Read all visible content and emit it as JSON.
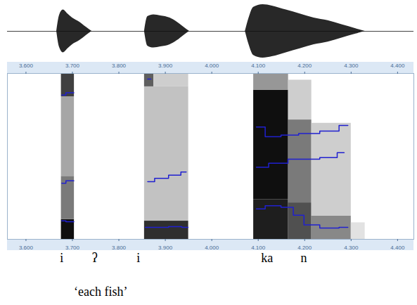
{
  "chart_data": {
    "type": "spectrogram",
    "xlim": [
      3.56,
      4.435
    ],
    "xticks": [
      {
        "value": 3.6,
        "label": "3.600"
      },
      {
        "value": 3.7,
        "label": "3.700"
      },
      {
        "value": 3.8,
        "label": "3.800"
      },
      {
        "value": 3.9,
        "label": "3.900"
      },
      {
        "value": 4.0,
        "label": "4.000"
      },
      {
        "value": 4.1,
        "label": "4.100"
      },
      {
        "value": 4.2,
        "label": "4.200"
      },
      {
        "value": 4.3,
        "label": "4.300"
      },
      {
        "value": 4.4,
        "label": "4.400"
      }
    ],
    "ylim": [
      0,
      5000
    ],
    "tick_labels": "x",
    "waveform": {
      "ylim": [
        -1,
        1
      ],
      "color": "#111111",
      "envelope": [
        [
          [
            3.666,
            0
          ],
          [
            3.672,
            0.6
          ],
          [
            3.68,
            0.8
          ],
          [
            3.69,
            0.65
          ],
          [
            3.7,
            0.5
          ],
          [
            3.715,
            0.35
          ],
          [
            3.73,
            0.15
          ],
          [
            3.742,
            0
          ]
        ],
        [
          [
            3.855,
            0
          ],
          [
            3.862,
            0.55
          ],
          [
            3.875,
            0.62
          ],
          [
            3.89,
            0.58
          ],
          [
            3.91,
            0.5
          ],
          [
            3.925,
            0.35
          ],
          [
            3.94,
            0.15
          ],
          [
            3.952,
            0
          ]
        ],
        [
          [
            4.072,
            0
          ],
          [
            4.08,
            0.5
          ],
          [
            4.09,
            0.9
          ],
          [
            4.11,
            1.0
          ],
          [
            4.13,
            0.95
          ],
          [
            4.16,
            0.8
          ],
          [
            4.19,
            0.65
          ],
          [
            4.22,
            0.5
          ],
          [
            4.25,
            0.4
          ],
          [
            4.28,
            0.25
          ],
          [
            4.31,
            0.1
          ],
          [
            4.33,
            0
          ]
        ]
      ]
    },
    "cells": [
      {
        "t0": 3.676,
        "t1": 3.704,
        "f0": 0,
        "f1": 600,
        "level": 0.95
      },
      {
        "t0": 3.676,
        "t1": 3.704,
        "f0": 600,
        "f1": 1900,
        "level": 0.6
      },
      {
        "t0": 3.676,
        "t1": 3.704,
        "f0": 1900,
        "f1": 4300,
        "level": 0.45
      },
      {
        "t0": 3.676,
        "t1": 3.704,
        "f0": 4300,
        "f1": 5000,
        "level": 0.8
      },
      {
        "t0": 3.855,
        "t1": 3.95,
        "f0": 0,
        "f1": 550,
        "level": 0.85
      },
      {
        "t0": 3.855,
        "t1": 3.95,
        "f0": 550,
        "f1": 4600,
        "level": 0.35
      },
      {
        "t0": 3.855,
        "t1": 3.875,
        "f0": 4600,
        "f1": 5000,
        "level": 0.7
      },
      {
        "t0": 3.875,
        "t1": 3.95,
        "f0": 4600,
        "f1": 5000,
        "level": 0.3
      },
      {
        "t0": 4.09,
        "t1": 4.165,
        "f0": 0,
        "f1": 1200,
        "level": 0.9
      },
      {
        "t0": 4.09,
        "t1": 4.165,
        "f0": 1200,
        "f1": 4500,
        "level": 0.95
      },
      {
        "t0": 4.09,
        "t1": 4.165,
        "f0": 4500,
        "f1": 5000,
        "level": 0.5
      },
      {
        "t0": 4.165,
        "t1": 4.215,
        "f0": 0,
        "f1": 1100,
        "level": 0.75
      },
      {
        "t0": 4.165,
        "t1": 4.215,
        "f0": 1100,
        "f1": 3600,
        "level": 0.6
      },
      {
        "t0": 4.165,
        "t1": 4.215,
        "f0": 3600,
        "f1": 4800,
        "level": 0.3
      },
      {
        "t0": 4.215,
        "t1": 4.3,
        "f0": 0,
        "f1": 700,
        "level": 0.55
      },
      {
        "t0": 4.215,
        "t1": 4.3,
        "f0": 700,
        "f1": 3500,
        "level": 0.3
      },
      {
        "t0": 4.3,
        "t1": 4.33,
        "f0": 0,
        "f1": 500,
        "level": 0.2
      }
    ],
    "tracks": [
      {
        "color": "#2020d0",
        "values": [
          [
            3.677,
            556
          ],
          [
            3.695,
            530
          ],
          [
            3.703,
            530
          ]
        ]
      },
      {
        "color": "#2020d0",
        "values": [
          [
            3.677,
            1690
          ],
          [
            3.695,
            1763
          ],
          [
            3.703,
            1763
          ]
        ]
      },
      {
        "color": "#2020d0",
        "values": [
          [
            3.677,
            4348
          ],
          [
            3.695,
            4420
          ],
          [
            3.703,
            4420
          ]
        ]
      },
      {
        "color": "#2020d0",
        "values": [
          [
            3.857,
            362
          ],
          [
            3.892,
            362
          ],
          [
            3.922,
            380
          ],
          [
            3.949,
            362
          ]
        ]
      },
      {
        "color": "#2020d0",
        "values": [
          [
            3.862,
            1739
          ],
          [
            3.892,
            1836
          ],
          [
            3.922,
            1932
          ],
          [
            3.945,
            2029
          ]
        ]
      },
      {
        "color": "#2020d0",
        "values": [
          [
            3.862,
            4830
          ],
          [
            3.869,
            4830
          ]
        ]
      },
      {
        "color": "#2020d0",
        "values": [
          [
            4.096,
            918
          ],
          [
            4.134,
            1014
          ],
          [
            4.164,
            966
          ],
          [
            4.187,
            725
          ],
          [
            4.21,
            435
          ],
          [
            4.255,
            338
          ],
          [
            4.293,
            362
          ]
        ]
      },
      {
        "color": "#2020d0",
        "values": [
          [
            4.096,
            2174
          ],
          [
            4.149,
            2295
          ],
          [
            4.179,
            2415
          ],
          [
            4.21,
            2415
          ],
          [
            4.255,
            2464
          ],
          [
            4.285,
            2609
          ]
        ]
      },
      {
        "color": "#2020d0",
        "values": [
          [
            4.096,
            3382
          ],
          [
            4.134,
            3092
          ],
          [
            4.164,
            3140
          ],
          [
            4.21,
            3188
          ],
          [
            4.255,
            3261
          ],
          [
            4.293,
            3430
          ]
        ]
      }
    ],
    "transcription": [
      {
        "t": 3.677,
        "text": "i"
      },
      {
        "t": 3.748,
        "text": "ʔ"
      },
      {
        "t": 3.842,
        "text": "i"
      },
      {
        "t": 4.119,
        "text": "ka"
      },
      {
        "t": 4.198,
        "text": "n"
      }
    ],
    "gloss": {
      "t": 3.703,
      "text": "‘each fish’"
    }
  }
}
